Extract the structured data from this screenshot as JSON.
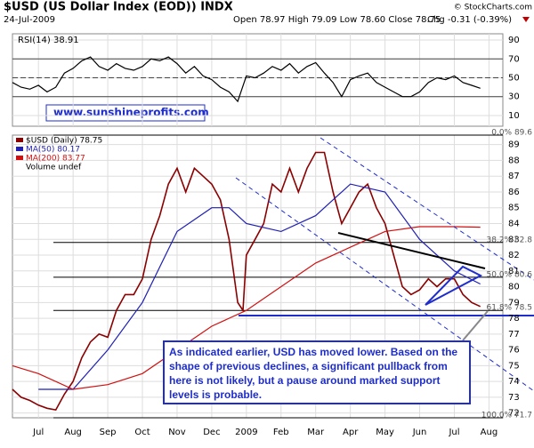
{
  "header": {
    "title": "$USD (US Dollar Index (EOD)) INDX",
    "date": "24-Jul-2009",
    "ohlc": "Open 78.97 High 79.09 Low 78.60 Close 78.75",
    "change": "Chg -0.31 (-0.39%)",
    "credit": "© StockCharts.com",
    "website": "www.sunshineprofits.com"
  },
  "annotation": "As indicated earlier, USD has moved lower. Based on the shape of previous declines, a significant pullback from here is not likely, but a pause around marked support levels is probable.",
  "chart_data": [
    {
      "type": "line",
      "title": "RSI(14) 38.91",
      "ylim": [
        -1.3,
        96.6
      ],
      "yticks": [
        10,
        30,
        50,
        70,
        90
      ],
      "xlim": [
        -0.75,
        13.4
      ],
      "x": [
        -0.75,
        -0.5,
        -0.25,
        0,
        0.25,
        0.5,
        0.75,
        1,
        1.25,
        1.5,
        1.75,
        2,
        2.25,
        2.5,
        2.75,
        3,
        3.25,
        3.5,
        3.75,
        4,
        4.25,
        4.5,
        4.75,
        5,
        5.25,
        5.5,
        5.75,
        6,
        6.25,
        6.5,
        6.75,
        7,
        7.25,
        7.5,
        7.75,
        8,
        8.25,
        8.5,
        8.75,
        9,
        9.25,
        9.5,
        9.75,
        10,
        10.25,
        10.5,
        10.75,
        11,
        11.25,
        11.5,
        11.75,
        12,
        12.25,
        12.5,
        12.75
      ],
      "values": [
        45,
        40,
        38,
        42,
        35,
        40,
        55,
        60,
        68,
        72,
        62,
        58,
        65,
        60,
        58,
        62,
        70,
        68,
        72,
        65,
        55,
        62,
        52,
        48,
        40,
        35,
        25,
        52,
        50,
        55,
        62,
        58,
        65,
        55,
        62,
        66,
        55,
        45,
        30,
        48,
        52,
        55,
        45,
        40,
        35,
        30,
        30,
        35,
        45,
        50,
        48,
        52,
        45,
        42,
        38.91
      ],
      "color": "#000000",
      "ref_lines": [
        70,
        30
      ],
      "mid_line": 50
    },
    {
      "type": "line",
      "title": "$USD (Daily) 78.75",
      "extra_legend": "Volume undef",
      "ylim": [
        71.7,
        89.6
      ],
      "xlim": [
        -0.75,
        13.4
      ],
      "yticks": [
        72,
        73,
        74,
        75,
        76,
        77,
        78,
        79,
        80,
        81,
        82,
        83,
        84,
        85,
        86,
        87,
        88,
        89
      ],
      "xticks": [
        {
          "value": 0,
          "label": "Jul"
        },
        {
          "value": 1,
          "label": "Aug"
        },
        {
          "value": 2,
          "label": "Sep"
        },
        {
          "value": 3,
          "label": "Oct"
        },
        {
          "value": 4,
          "label": "Nov"
        },
        {
          "value": 5,
          "label": "Dec"
        },
        {
          "value": 6,
          "label": "2009"
        },
        {
          "value": 7,
          "label": "Feb"
        },
        {
          "value": 8,
          "label": "Mar"
        },
        {
          "value": 9,
          "label": "Apr"
        },
        {
          "value": 10,
          "label": "May"
        },
        {
          "value": 11,
          "label": "Jun"
        },
        {
          "value": 12,
          "label": "Jul"
        },
        {
          "value": 13,
          "label": "Aug"
        }
      ],
      "fib_levels": [
        {
          "value": 89.6,
          "label": "0.0% 89.6"
        },
        {
          "value": 82.8,
          "label": "38.2% 82.8"
        },
        {
          "value": 80.6,
          "label": "50.0% 80.6"
        },
        {
          "value": 78.5,
          "label": "61.8% 78.5"
        },
        {
          "value": 71.7,
          "label": "100.0% 71.7"
        }
      ],
      "series": [
        {
          "name": "$USD (Daily) 78.75",
          "color": "#8b0000",
          "x": [
            -0.75,
            -0.5,
            -0.25,
            0,
            0.25,
            0.5,
            0.75,
            1,
            1.25,
            1.5,
            1.75,
            2,
            2.25,
            2.5,
            2.75,
            3,
            3.25,
            3.5,
            3.75,
            4,
            4.25,
            4.5,
            4.75,
            5,
            5.25,
            5.5,
            5.75,
            5.9,
            6,
            6.25,
            6.5,
            6.75,
            7,
            7.25,
            7.5,
            7.75,
            8,
            8.25,
            8.5,
            8.75,
            9,
            9.25,
            9.5,
            9.75,
            10,
            10.25,
            10.5,
            10.75,
            11,
            11.25,
            11.5,
            11.75,
            12,
            12.25,
            12.5,
            12.75
          ],
          "values": [
            73.5,
            73,
            72.8,
            72.5,
            72.3,
            72.2,
            73.2,
            74,
            75.5,
            76.5,
            77,
            76.8,
            78.5,
            79.5,
            79.5,
            80.5,
            83,
            84.5,
            86.5,
            87.5,
            86,
            87.5,
            87,
            86.5,
            85.5,
            83,
            79,
            78.5,
            82,
            83,
            84,
            86.5,
            86,
            87.5,
            86,
            87.5,
            88.5,
            88.5,
            86,
            84,
            85,
            86,
            86.5,
            85,
            84,
            82,
            80,
            79.5,
            79.8,
            80.5,
            80,
            80.5,
            80.5,
            79.5,
            79,
            78.75
          ]
        },
        {
          "name": "MA(50) 80.17",
          "color": "#1f1fb4",
          "x": [
            0,
            1,
            2,
            3,
            4,
            5,
            5.5,
            6,
            7,
            8,
            8.5,
            9,
            10,
            11,
            12,
            12.75
          ],
          "values": [
            73.5,
            73.5,
            76,
            79,
            83.5,
            85,
            85,
            84,
            83.5,
            84.5,
            85.5,
            86.5,
            86,
            83,
            81,
            80.17
          ]
        },
        {
          "name": "MA(200) 83.77",
          "color": "#d01010",
          "x": [
            -0.75,
            0,
            1,
            2,
            3,
            4,
            5,
            6,
            7,
            8,
            9,
            10,
            11,
            12,
            12.75
          ],
          "values": [
            75,
            74.5,
            73.5,
            73.8,
            74.5,
            76,
            77.5,
            78.5,
            80,
            81.5,
            82.5,
            83.5,
            83.8,
            83.8,
            83.77
          ]
        }
      ]
    }
  ]
}
